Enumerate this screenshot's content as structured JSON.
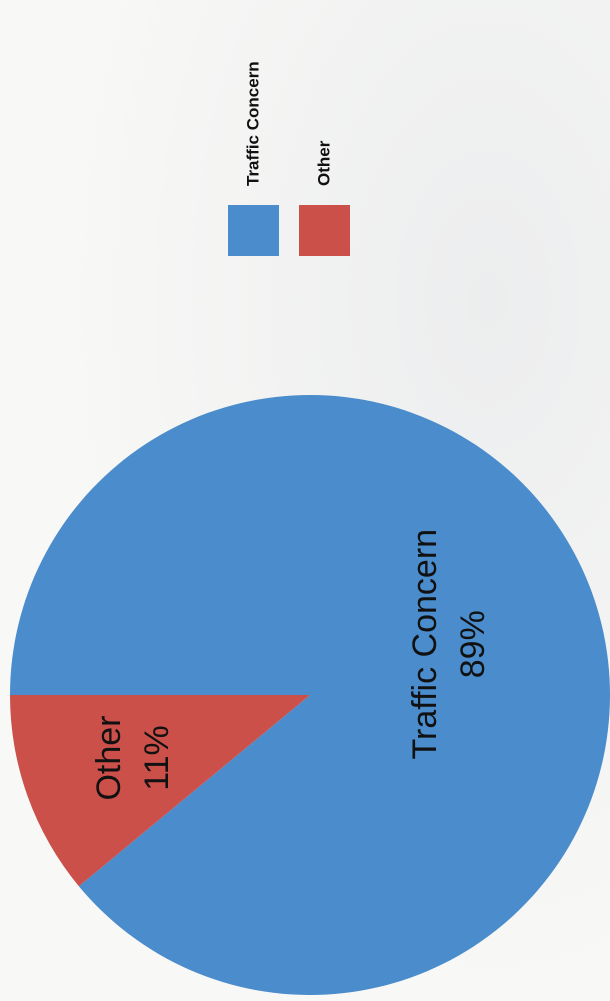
{
  "chart_data": {
    "type": "pie",
    "categories": [
      "Traffic Concern",
      "Other"
    ],
    "values": [
      89,
      11
    ],
    "value_labels": [
      "89%",
      "11%"
    ],
    "colors": [
      "#4a8ccc",
      "#cc504a"
    ],
    "legend": "top"
  }
}
